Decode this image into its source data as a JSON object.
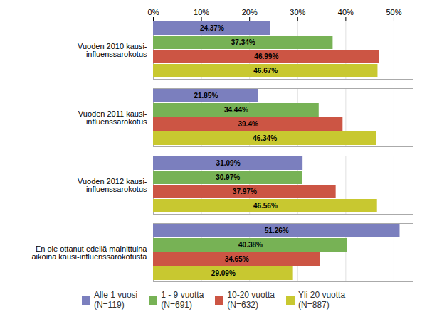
{
  "chart_data": {
    "type": "bar",
    "orientation": "horizontal",
    "categories": [
      "Vuoden 2010 kausi-\ninfluenssarokotus",
      "Vuoden 2011 kausi-\ninfluenssarokotus",
      "Vuoden 2012 kausi-\ninfluenssarokotus",
      "En ole ottanut edellä mainittuina\naikoina kausi-influenssarokotusta"
    ],
    "series": [
      {
        "name": "Alle 1 vuosi\n(N=119)",
        "color": "#7b7fbe",
        "values": [
          24.37,
          21.85,
          31.09,
          51.26
        ],
        "value_labels": [
          "24.37%",
          "21.85%",
          "31.09%",
          "51.26%"
        ]
      },
      {
        "name": "1 - 9 vuotta\n(N=691)",
        "color": "#77b255",
        "values": [
          37.34,
          34.44,
          30.97,
          40.38
        ],
        "value_labels": [
          "37.34%",
          "34.44%",
          "30.97%",
          "40.38%"
        ]
      },
      {
        "name": "10-20 vuotta\n(N=632)",
        "color": "#cc5544",
        "values": [
          46.99,
          39.4,
          37.97,
          34.65
        ],
        "value_labels": [
          "46.99%",
          "39.4%",
          "37.97%",
          "34.65%"
        ]
      },
      {
        "name": "Yli 20 vuotta\n(N=887)",
        "color": "#c8c830",
        "values": [
          46.67,
          46.34,
          46.56,
          29.09
        ],
        "value_labels": [
          "46.67%",
          "46.34%",
          "46.56%",
          "29.09%"
        ]
      }
    ],
    "xlim": [
      0,
      54
    ],
    "xticks": [
      {
        "value": 0,
        "label": "0%"
      },
      {
        "value": 10,
        "label": "10%"
      },
      {
        "value": 20,
        "label": "20%"
      },
      {
        "value": 30,
        "label": "30%"
      },
      {
        "value": 40,
        "label": "40%"
      },
      {
        "value": 50,
        "label": "50%"
      }
    ],
    "grid": true,
    "data_labels": true,
    "legend": "bottom"
  }
}
